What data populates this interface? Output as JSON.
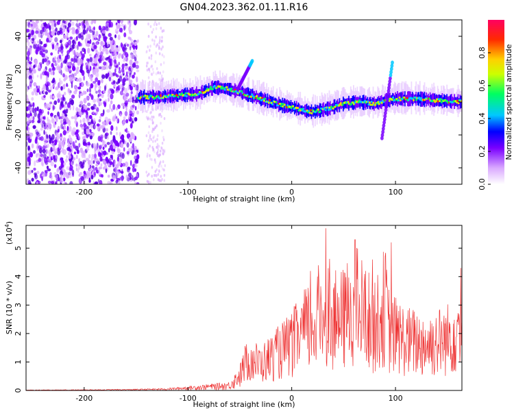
{
  "title": "GN04.2023.362.01.11.R16",
  "chart_data": [
    {
      "type": "heatmap",
      "xlabel": "Height of straight line (km)",
      "ylabel": "Frequency (Hz)",
      "xlim": [
        -256,
        164
      ],
      "ylim": [
        -50,
        50
      ],
      "x_ticks": [
        -200,
        -100,
        0,
        100
      ],
      "y_ticks": [
        -40,
        -20,
        0,
        20,
        40
      ],
      "colorbar": {
        "label": "Normalized spectral amplitude",
        "range": [
          0,
          1
        ],
        "ticks": [
          "0.0",
          "0.2",
          "0.4",
          "0.6",
          "0.8"
        ],
        "colors": [
          "#ffffff",
          "#d9a8ff",
          "#7a00ff",
          "#0000ff",
          "#00c8ff",
          "#00ff60",
          "#ccff00",
          "#ffd000",
          "#ff2a00",
          "#ff0060"
        ]
      },
      "noise_region_x": [
        -256,
        -148
      ],
      "faint_noise_x": [
        -140,
        -122
      ],
      "ridge": {
        "x": [
          -148,
          -130,
          -110,
          -90,
          -75,
          -62,
          -50,
          -40,
          -25,
          -10,
          0,
          10,
          20,
          35,
          50,
          65,
          80,
          92,
          100,
          120,
          140,
          164
        ],
        "y": [
          3,
          3,
          4,
          5,
          9,
          8,
          6,
          4,
          1,
          -2,
          -3,
          -5,
          -6,
          -4,
          -1,
          0,
          -1,
          1,
          2,
          2,
          1,
          0
        ]
      },
      "spikes": [
        {
          "x0": -52,
          "x1": -38,
          "y0": 8,
          "y1": 25
        },
        {
          "x0": 87,
          "x1": 97,
          "y0": -22,
          "y1": 24
        }
      ]
    },
    {
      "type": "line",
      "xlabel": "Height of straight line (km)",
      "ylabel": "SNR (10 * v/v)",
      "y_multiplier": "(x10",
      "y_multiplier_exp": "4",
      "y_multiplier_close": ")",
      "xlim": [
        -256,
        164
      ],
      "ylim": [
        0,
        5.8
      ],
      "x_ticks": [
        -200,
        -100,
        0,
        100
      ],
      "y_ticks": [
        0,
        1,
        2,
        3,
        4,
        5
      ],
      "color": "#ee3333",
      "envelope": {
        "x": [
          -256,
          -200,
          -150,
          -120,
          -100,
          -60,
          -50,
          -45,
          -40,
          -30,
          -20,
          -10,
          0,
          10,
          20,
          30,
          33,
          40,
          50,
          60,
          70,
          80,
          90,
          95,
          100,
          110,
          130,
          150,
          164
        ],
        "y": [
          0.02,
          0.03,
          0.05,
          0.08,
          0.15,
          0.3,
          0.9,
          1.6,
          1.9,
          1.6,
          2.0,
          2.4,
          2.8,
          3.5,
          4.0,
          4.8,
          5.7,
          4.2,
          4.3,
          5.3,
          4.6,
          3.8,
          5.2,
          3.2,
          3.4,
          3.0,
          2.8,
          3.1,
          4.2
        ]
      },
      "spike_points": [
        {
          "x": 33,
          "y": 5.7
        },
        {
          "x": 61,
          "y": 5.3
        },
        {
          "x": 96,
          "y": 5.2
        },
        {
          "x": 78,
          "y": 4.6
        },
        {
          "x": 18,
          "y": 4.2
        },
        {
          "x": 163,
          "y": 4.3
        }
      ]
    }
  ]
}
